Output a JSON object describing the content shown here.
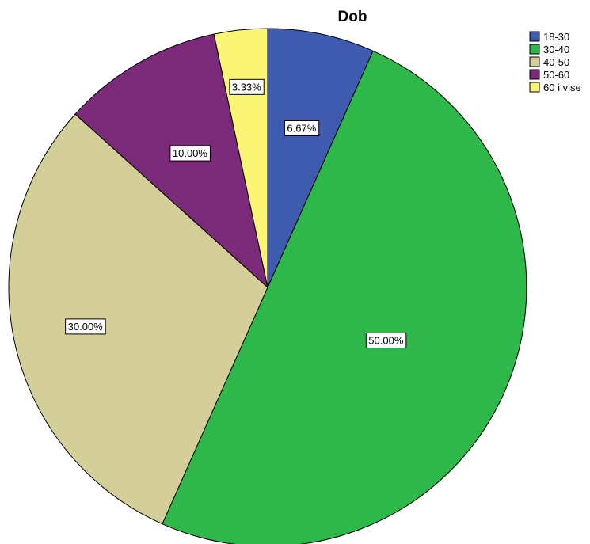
{
  "chart_data": {
    "type": "pie",
    "title": "Dob",
    "start": "12 o'clock",
    "direction": "clockwise",
    "legend_position": "top-right",
    "slices": [
      {
        "name": "18-30",
        "value": 6.67,
        "label": "6.67%",
        "color": "#3f5bb0"
      },
      {
        "name": "30-40",
        "value": 50.0,
        "label": "50.00%",
        "color": "#2eb84a"
      },
      {
        "name": "40-50",
        "value": 30.0,
        "label": "30.00%",
        "color": "#d4cf99"
      },
      {
        "name": "50-60",
        "value": 10.0,
        "label": "10.00%",
        "color": "#7b2a7a"
      },
      {
        "name": "60 i vise",
        "value": 3.33,
        "label": "3.33%",
        "color": "#fbf576"
      }
    ]
  }
}
